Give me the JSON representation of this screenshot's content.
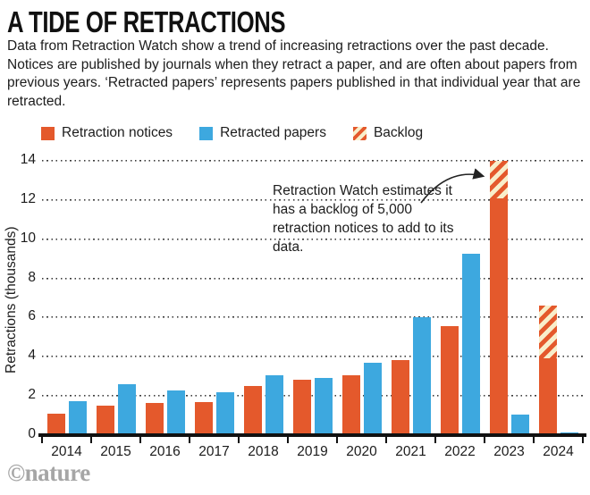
{
  "page": {
    "title": "A TIDE OF RETRACTIONS",
    "description": "Data from Retraction Watch show a trend of increasing retractions over the past decade. Notices are published by journals when they retract a paper, and are often about papers from previous years. ‘Retracted papers’ represents papers published in that individual year that are retracted.",
    "credit": "©nature"
  },
  "legend": {
    "items": [
      {
        "label": "Retraction notices",
        "swatch": "solid-orange",
        "color": "#e4592c"
      },
      {
        "label": "Retracted papers",
        "swatch": "solid-blue",
        "color": "#3da8df"
      },
      {
        "label": "Backlog",
        "swatch": "hatched-orange-cream",
        "color": "#e4592c",
        "color2": "#f8eeca"
      }
    ]
  },
  "annotation": {
    "text": "Retraction Watch estimates it has a backlog of 5,000 retraction notices to add to its data.",
    "arrow": "curved-arrow-pointing-to-2023-backlog"
  },
  "colors": {
    "notices_orange": "#e4592c",
    "papers_blue": "#3da8df",
    "backlog_cream": "#f8eeca",
    "axis_black": "#111111",
    "credit_gray": "#a6a6a6"
  },
  "chart_data": {
    "type": "bar",
    "title": "A TIDE OF RETRACTIONS",
    "xlabel": "",
    "ylabel": "Retractions (thousands)",
    "ylim": [
      0,
      14
    ],
    "yticks": [
      0,
      2,
      4,
      6,
      8,
      10,
      12,
      14
    ],
    "grid": "dotted-horizontal",
    "legend_position": "top",
    "categories": [
      "2014",
      "2015",
      "2016",
      "2017",
      "2018",
      "2019",
      "2020",
      "2021",
      "2022",
      "2023",
      "2024"
    ],
    "series": [
      {
        "name": "Retraction notices",
        "color": "#e4592c",
        "values": [
          1.1,
          1.5,
          1.65,
          1.7,
          2.5,
          2.85,
          3.05,
          3.85,
          5.55,
          12.1,
          3.9
        ]
      },
      {
        "name": "Retracted papers",
        "color": "#3da8df",
        "values": [
          1.75,
          2.6,
          2.3,
          2.2,
          3.05,
          2.9,
          3.7,
          6.0,
          9.25,
          1.05,
          0.15
        ]
      },
      {
        "name": "Backlog",
        "style": "hatched",
        "stacked_on": "Retraction notices",
        "values": [
          0,
          0,
          0,
          0,
          0,
          0,
          0,
          0,
          0,
          1.9,
          2.7
        ]
      }
    ]
  }
}
